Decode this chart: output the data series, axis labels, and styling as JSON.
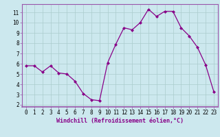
{
  "x": [
    0,
    1,
    2,
    3,
    4,
    5,
    6,
    7,
    8,
    9,
    10,
    11,
    12,
    13,
    14,
    15,
    16,
    17,
    18,
    19,
    20,
    21,
    22,
    23
  ],
  "y": [
    5.8,
    5.8,
    5.2,
    5.8,
    5.1,
    5.0,
    4.3,
    3.1,
    2.5,
    2.4,
    6.1,
    7.9,
    9.5,
    9.3,
    10.0,
    11.3,
    10.6,
    11.1,
    11.1,
    9.5,
    8.7,
    7.6,
    5.9,
    3.3
  ],
  "line_color": "#880088",
  "marker": "D",
  "marker_size": 2.0,
  "linewidth": 0.9,
  "xlabel": "Windchill (Refroidissement éolien,°C)",
  "xlabel_fontsize": 6.0,
  "ylabel_ticks": [
    2,
    3,
    4,
    5,
    6,
    7,
    8,
    9,
    10,
    11
  ],
  "xlim": [
    -0.5,
    23.5
  ],
  "ylim": [
    1.8,
    11.8
  ],
  "xtick_labels": [
    "0",
    "1",
    "2",
    "3",
    "4",
    "5",
    "6",
    "7",
    "8",
    "9",
    "10",
    "11",
    "12",
    "13",
    "14",
    "15",
    "16",
    "17",
    "18",
    "19",
    "20",
    "21",
    "22",
    "23"
  ],
  "bg_color": "#cce8ee",
  "grid_color": "#aacccc",
  "tick_fontsize": 5.5,
  "spine_color": "#9955aa",
  "xlabel_color": "#880088"
}
